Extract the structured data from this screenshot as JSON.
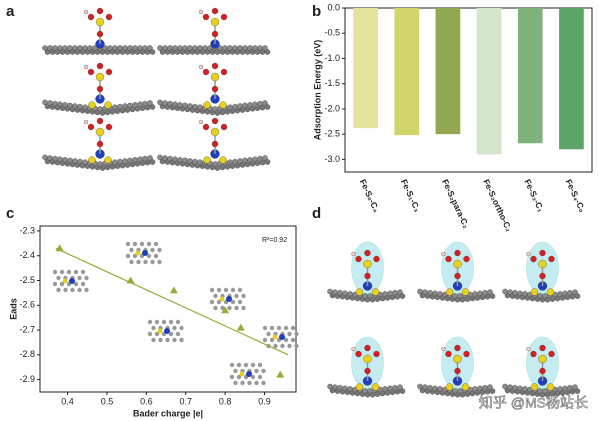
{
  "panels": [
    "a",
    "b",
    "c",
    "d"
  ],
  "watermark": "知乎 @MS杨站长",
  "chart_data": [
    {
      "type": "bar",
      "ylabel": "Adsorption Energy (eV)",
      "categories": [
        "Fe-S₀-C₄",
        "Fe-S₁-C₃",
        "Fe-S₂para-C₂",
        "Fe-S₂ortho-C₂",
        "Fe-S₃-C₁",
        "Fe-S₄-C₀"
      ],
      "values": [
        -2.38,
        -2.52,
        -2.5,
        -2.9,
        -2.68,
        -2.8
      ],
      "colors": [
        "#e4e39e",
        "#d2d56b",
        "#92a94f",
        "#d3e6cd",
        "#80b27e",
        "#5da468"
      ],
      "ylim": [
        -3.25,
        0
      ],
      "yticks": [
        {
          "value": 0,
          "label": "0.0"
        },
        -0.5,
        {
          "value": -1,
          "label": "-1.0"
        },
        -1.5,
        {
          "value": -2,
          "label": "-2.0"
        },
        -2.5,
        {
          "value": -3,
          "label": "-3.0"
        }
      ]
    },
    {
      "type": "scatter",
      "xlabel": "Bader charge |e|",
      "ylabel": "Eads",
      "annotation": "R²=0.92",
      "x": [
        0.38,
        0.56,
        0.67,
        0.8,
        0.84,
        0.94
      ],
      "values": [
        -2.37,
        -2.5,
        -2.54,
        -2.62,
        -2.69,
        -2.88
      ],
      "fit": {
        "x": [
          0.37,
          0.96
        ],
        "values": [
          -2.37,
          -2.8
        ]
      },
      "color": "#9aaa3a",
      "xlim": [
        0.33,
        0.98
      ],
      "xticks": [
        0.4,
        0.5,
        0.6,
        0.7,
        0.8,
        0.9
      ],
      "ylim": [
        -2.95,
        -2.28
      ],
      "yticks": [
        -2.3,
        -2.4,
        -2.5,
        -2.6,
        -2.7,
        -2.8,
        -2.9
      ]
    }
  ]
}
